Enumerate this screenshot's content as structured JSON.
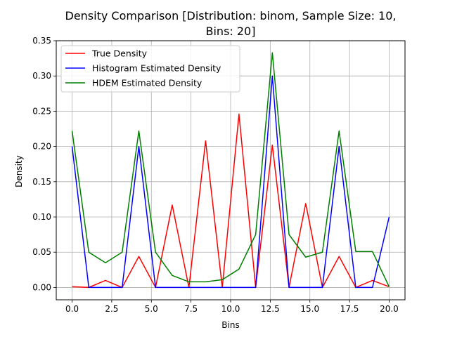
{
  "chart_data": {
    "type": "line",
    "title_line1": "Density Comparison [Distribution: binom, Sample Size: 10,",
    "title_line2": "Bins: 20]",
    "xlabel": "Bins",
    "ylabel": "Density",
    "xlim": [
      -1.0,
      21.0
    ],
    "ylim": [
      -0.0175,
      0.35
    ],
    "xticks": [
      0.0,
      2.5,
      5.0,
      7.5,
      10.0,
      12.5,
      15.0,
      17.5,
      20.0
    ],
    "xtick_labels": [
      "0.0",
      "2.5",
      "5.0",
      "7.5",
      "10.0",
      "12.5",
      "15.0",
      "17.5",
      "20.0"
    ],
    "yticks": [
      0.0,
      0.05,
      0.1,
      0.15,
      0.2,
      0.25,
      0.3,
      0.35
    ],
    "ytick_labels": [
      "0.00",
      "0.05",
      "0.10",
      "0.15",
      "0.20",
      "0.25",
      "0.30",
      "0.35"
    ],
    "grid": true,
    "legend_position": "top-left",
    "x": [
      0.0,
      1.0526,
      2.1053,
      3.1579,
      4.2105,
      5.2632,
      6.3158,
      7.3684,
      8.4211,
      9.4737,
      10.5263,
      11.5789,
      12.6316,
      13.6842,
      14.7368,
      15.7895,
      16.8421,
      17.8947,
      18.9474,
      20.0
    ],
    "series": [
      {
        "name": "True Density",
        "color": "#ff0000",
        "values": [
          0.001,
          0.0,
          0.01,
          0.0,
          0.044,
          0.0,
          0.117,
          0.0,
          0.208,
          0.0,
          0.246,
          0.0,
          0.202,
          0.0,
          0.119,
          0.0,
          0.044,
          0.0,
          0.01,
          0.001
        ]
      },
      {
        "name": "Histogram Estimated Density",
        "color": "#0000ff",
        "values": [
          0.2,
          0.0,
          0.0,
          0.0,
          0.2,
          0.0,
          0.0,
          0.0,
          0.0,
          0.0,
          0.0,
          0.0,
          0.3,
          0.0,
          0.0,
          0.0,
          0.2,
          0.0,
          0.0,
          0.1
        ]
      },
      {
        "name": "HDEM Estimated Density",
        "color": "#008000",
        "values": [
          0.222,
          0.05,
          0.035,
          0.05,
          0.222,
          0.05,
          0.017,
          0.008,
          0.008,
          0.011,
          0.026,
          0.075,
          0.333,
          0.075,
          0.043,
          0.05,
          0.222,
          0.051,
          0.051,
          0.001
        ]
      }
    ]
  }
}
